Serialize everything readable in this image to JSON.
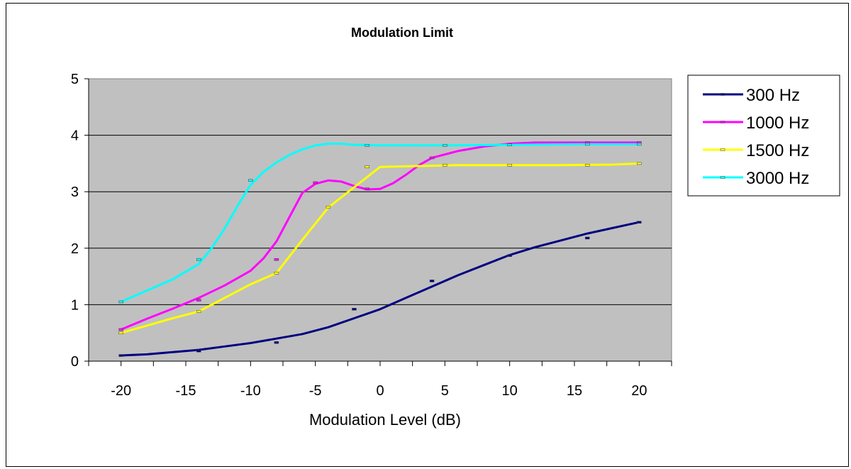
{
  "chart_data": {
    "type": "line",
    "title": "Modulation Limit",
    "xlabel": "Modulation Level (dB)",
    "ylabel": "",
    "xlim": [
      -22.5,
      22.5
    ],
    "ylim": [
      0,
      5
    ],
    "x_ticks": [
      -20,
      -15,
      -10,
      -5,
      0,
      5,
      10,
      15,
      20
    ],
    "y_ticks": [
      0,
      1,
      2,
      3,
      4,
      5
    ],
    "grid": true,
    "legend_position": "right",
    "plot_background": "#c0c0c0",
    "series": [
      {
        "name": "300 Hz",
        "color": "#000080",
        "points": [
          [
            -20,
            0.1
          ],
          [
            -18,
            0.12
          ],
          [
            -16,
            0.16
          ],
          [
            -14,
            0.2
          ],
          [
            -12,
            0.26
          ],
          [
            -10,
            0.32
          ],
          [
            -8,
            0.4
          ],
          [
            -6,
            0.48
          ],
          [
            -4,
            0.6
          ],
          [
            -2,
            0.76
          ],
          [
            0,
            0.92
          ],
          [
            2,
            1.12
          ],
          [
            4,
            1.32
          ],
          [
            6,
            1.52
          ],
          [
            8,
            1.7
          ],
          [
            10,
            1.88
          ],
          [
            12,
            2.02
          ],
          [
            14,
            2.14
          ],
          [
            16,
            2.26
          ],
          [
            18,
            2.36
          ],
          [
            20,
            2.46
          ]
        ],
        "markers": [
          [
            -20,
            0.1
          ],
          [
            -14,
            0.18
          ],
          [
            -8,
            0.33
          ],
          [
            -2,
            0.92
          ],
          [
            4,
            1.42
          ],
          [
            10,
            1.87
          ],
          [
            16,
            2.18
          ],
          [
            20,
            2.46
          ]
        ]
      },
      {
        "name": "1000 Hz",
        "color": "#ff00ff",
        "points": [
          [
            -20,
            0.56
          ],
          [
            -18,
            0.75
          ],
          [
            -16,
            0.93
          ],
          [
            -14,
            1.12
          ],
          [
            -12,
            1.34
          ],
          [
            -10,
            1.6
          ],
          [
            -9,
            1.82
          ],
          [
            -8,
            2.12
          ],
          [
            -7,
            2.55
          ],
          [
            -6,
            2.98
          ],
          [
            -5,
            3.14
          ],
          [
            -4,
            3.2
          ],
          [
            -3,
            3.18
          ],
          [
            -2,
            3.1
          ],
          [
            -1,
            3.04
          ],
          [
            0,
            3.05
          ],
          [
            1,
            3.15
          ],
          [
            2,
            3.3
          ],
          [
            3,
            3.47
          ],
          [
            4,
            3.6
          ],
          [
            6,
            3.72
          ],
          [
            8,
            3.8
          ],
          [
            10,
            3.85
          ],
          [
            12,
            3.87
          ],
          [
            14,
            3.87
          ],
          [
            16,
            3.87
          ],
          [
            18,
            3.87
          ],
          [
            20,
            3.87
          ]
        ],
        "markers": [
          [
            -20,
            0.56
          ],
          [
            -14,
            1.08
          ],
          [
            -8,
            1.8
          ],
          [
            -5,
            3.16
          ],
          [
            -1,
            3.05
          ],
          [
            4,
            3.6
          ],
          [
            16,
            3.87
          ],
          [
            20,
            3.87
          ]
        ]
      },
      {
        "name": "1500 Hz",
        "color": "#ffff00",
        "points": [
          [
            -20,
            0.5
          ],
          [
            -18,
            0.63
          ],
          [
            -16,
            0.76
          ],
          [
            -14,
            0.88
          ],
          [
            -12,
            1.12
          ],
          [
            -10,
            1.36
          ],
          [
            -8,
            1.56
          ],
          [
            -6,
            2.15
          ],
          [
            -4,
            2.72
          ],
          [
            -2,
            3.08
          ],
          [
            0,
            3.44
          ],
          [
            2,
            3.45
          ],
          [
            4,
            3.46
          ],
          [
            6,
            3.47
          ],
          [
            10,
            3.47
          ],
          [
            14,
            3.47
          ],
          [
            18,
            3.48
          ],
          [
            20,
            3.5
          ]
        ],
        "markers": [
          [
            -20,
            0.5
          ],
          [
            -14,
            0.88
          ],
          [
            -8,
            1.56
          ],
          [
            -4,
            2.73
          ],
          [
            -1,
            3.44
          ],
          [
            5,
            3.47
          ],
          [
            10,
            3.47
          ],
          [
            16,
            3.47
          ],
          [
            20,
            3.5
          ]
        ]
      },
      {
        "name": "3000 Hz",
        "color": "#00ffff",
        "points": [
          [
            -20,
            1.05
          ],
          [
            -18,
            1.25
          ],
          [
            -16,
            1.45
          ],
          [
            -14,
            1.72
          ],
          [
            -13,
            2.0
          ],
          [
            -12,
            2.35
          ],
          [
            -11,
            2.75
          ],
          [
            -10,
            3.12
          ],
          [
            -9,
            3.35
          ],
          [
            -8,
            3.52
          ],
          [
            -7,
            3.65
          ],
          [
            -6,
            3.75
          ],
          [
            -5,
            3.82
          ],
          [
            -4,
            3.85
          ],
          [
            -3,
            3.85
          ],
          [
            -2,
            3.83
          ],
          [
            0,
            3.82
          ],
          [
            5,
            3.82
          ],
          [
            10,
            3.83
          ],
          [
            15,
            3.84
          ],
          [
            20,
            3.84
          ]
        ],
        "markers": [
          [
            -20,
            1.05
          ],
          [
            -14,
            1.8
          ],
          [
            -10,
            3.2
          ],
          [
            -1,
            3.82
          ],
          [
            5,
            3.82
          ],
          [
            10,
            3.83
          ],
          [
            16,
            3.84
          ],
          [
            20,
            3.84
          ]
        ]
      }
    ]
  }
}
